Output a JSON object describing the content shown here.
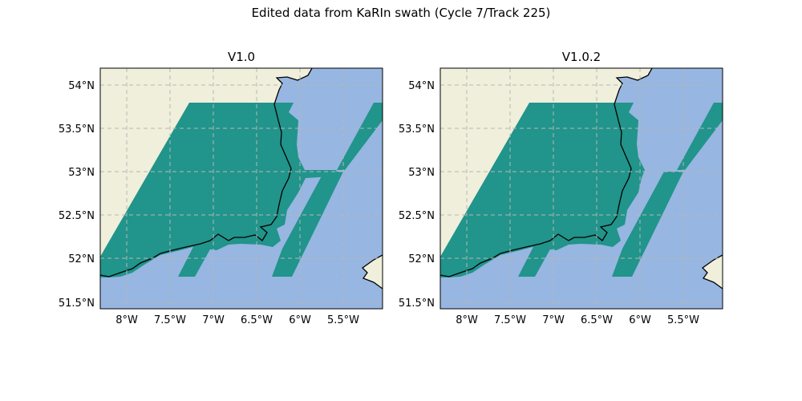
{
  "suptitle": "Edited data from KaRIn swath (Cycle 7/Track 225)",
  "colors": {
    "land": "#efefdb",
    "ocean": "#97b6e1",
    "swath": "#21948b",
    "coast": "#000000",
    "grid": "#b7b7b7"
  },
  "chart_data": [
    {
      "type": "map",
      "title": "V1.0",
      "xlim": [
        -8.3,
        -5.05
      ],
      "ylim": [
        51.43,
        54.2
      ],
      "xticks": [
        "8°W",
        "7.5°W",
        "7°W",
        "6.5°W",
        "6°W",
        "5.5°W"
      ],
      "yticks": [
        "51.5°N",
        "52°N",
        "52.5°N",
        "53°N",
        "53.5°N",
        "54°N"
      ],
      "gridlines": true
    },
    {
      "type": "map",
      "title": "V1.0.2",
      "xlim": [
        -8.3,
        -5.05
      ],
      "ylim": [
        51.43,
        54.2
      ],
      "xticks": [
        "8°W",
        "7.5°W",
        "7°W",
        "6.5°W",
        "6°W",
        "5.5°W"
      ],
      "yticks": [
        "51.5°N",
        "52°N",
        "52.5°N",
        "53°N",
        "53.5°N",
        "54°N"
      ],
      "gridlines": true
    }
  ]
}
